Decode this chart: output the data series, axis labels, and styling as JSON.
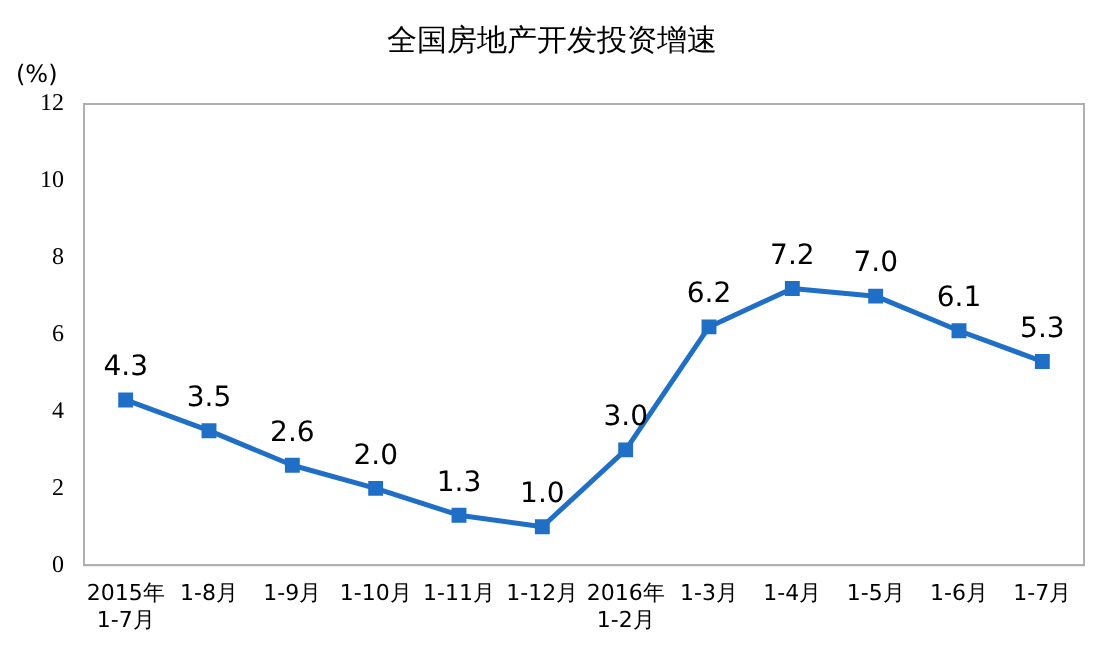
{
  "chart_data": {
    "type": "line",
    "title": "全国房地产开发投资增速",
    "ylabel": "(%)",
    "categories": [
      "2015年\n1-7月",
      "1-8月",
      "1-9月",
      "1-10月",
      "1-11月",
      "1-12月",
      "2016年\n1-2月",
      "1-3月",
      "1-4月",
      "1-5月",
      "1-6月",
      "1-7月"
    ],
    "series": [
      {
        "color": "#1f6fc6",
        "values": [
          4.3,
          3.5,
          2.6,
          2.0,
          1.3,
          1.0,
          3.0,
          6.2,
          7.2,
          7.0,
          6.1,
          5.3
        ],
        "value_labels": [
          "4.3",
          "3.5",
          "2.6",
          "2.0",
          "1.3",
          "1.0",
          "3.0",
          "6.2",
          "7.2",
          "7.0",
          "6.1",
          "5.3"
        ]
      }
    ],
    "ylim": [
      0,
      12
    ],
    "yticks": [
      0,
      2,
      4,
      6,
      8,
      10,
      12
    ],
    "grid": false,
    "legend": false,
    "marker": "square",
    "line_style": "solid"
  }
}
